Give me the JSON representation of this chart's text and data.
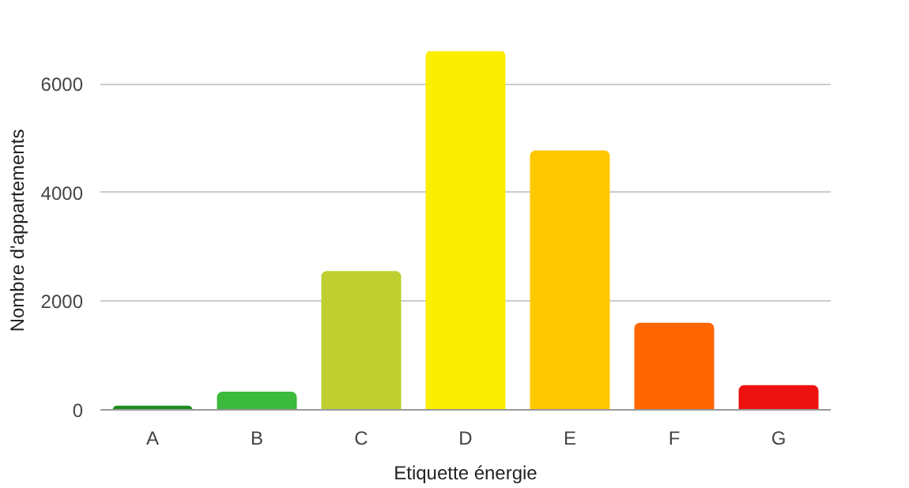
{
  "chart_data": {
    "type": "bar",
    "xlabel": "Etiquette énergie",
    "ylabel": "Nombre d'appartements",
    "categories": [
      "A",
      "B",
      "C",
      "D",
      "E",
      "F",
      "G"
    ],
    "values": [
      60,
      320,
      2540,
      6600,
      4760,
      1590,
      440
    ],
    "colors": [
      "#1e8c1e",
      "#3cba3c",
      "#bfcf2f",
      "#fbee00",
      "#fec800",
      "#ff6600",
      "#ee1111"
    ],
    "ylim": [
      0,
      6600
    ],
    "yticks": [
      0,
      2000,
      4000,
      6000
    ],
    "grid": "y"
  }
}
